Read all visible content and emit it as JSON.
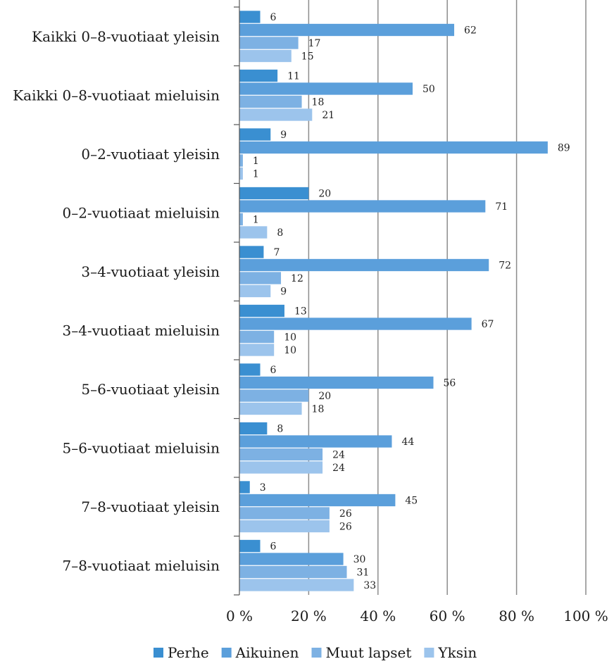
{
  "chart_data": {
    "type": "bar",
    "orientation": "horizontal",
    "title": "",
    "xlabel": "",
    "ylabel": "",
    "xlim": [
      0,
      100
    ],
    "x_ticks": [
      "0 %",
      "20 %",
      "40 %",
      "60 %",
      "80 %",
      "100 %"
    ],
    "x_tick_values": [
      0,
      20,
      40,
      60,
      80,
      100
    ],
    "grid": "vertical",
    "legend_position": "bottom",
    "categories": [
      "Kaikki 0–8-vuotiaat yleisin",
      "Kaikki 0–8-vuotiaat mieluisin",
      "0–2-vuotiaat yleisin",
      "0–2-vuotiaat mieluisin",
      "3–4-vuotiaat  yleisin",
      "3–4-vuotiaat mieluisin",
      "5–6-vuotiaat  yleisin",
      "5–6-vuotiaat mieluisin",
      "7–8-vuotiaat yleisin",
      "7–8-vuotiaat mieluisin"
    ],
    "series": [
      {
        "name": "Perhe",
        "color": "#3a8fd1",
        "values": [
          6,
          11,
          9,
          20,
          7,
          13,
          6,
          8,
          3,
          6
        ]
      },
      {
        "name": "Aikuinen",
        "color": "#5b9fdb",
        "values": [
          62,
          50,
          89,
          71,
          72,
          67,
          56,
          44,
          45,
          30
        ]
      },
      {
        "name": "Muut lapset",
        "color": "#7db1e3",
        "values": [
          17,
          18,
          1,
          1,
          12,
          10,
          20,
          24,
          26,
          31
        ]
      },
      {
        "name": "Yksin",
        "color": "#9cc4ec",
        "values": [
          15,
          21,
          1,
          8,
          9,
          10,
          18,
          24,
          26,
          33
        ]
      }
    ]
  }
}
